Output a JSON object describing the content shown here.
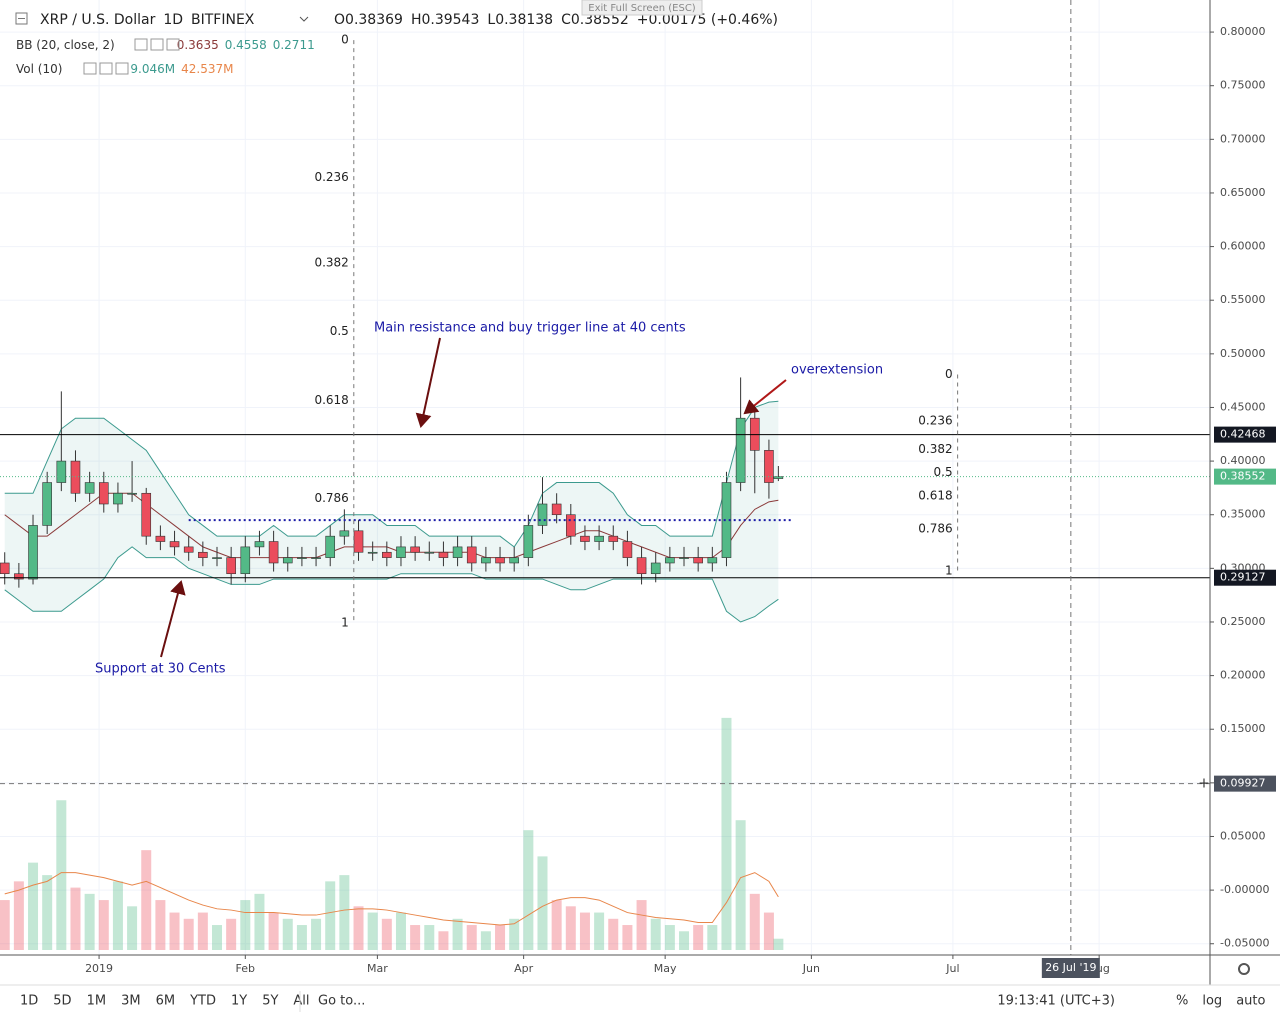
{
  "chart_data": {
    "type": "candlestick",
    "symbol": "XRP / U.S. Dollar",
    "interval": "1D",
    "exchange": "BITFINEX",
    "ohlc_prefixes": [
      "O",
      "H",
      "L",
      "C"
    ],
    "change_text": "+0.00175 (+0.46%)",
    "tooltip": "Exit Full Screen (ESC)",
    "bb_title": "BB (20, close, 2)",
    "vol_title": "Vol (10)",
    "volume_legend": [
      "9.046M",
      "42.537M"
    ],
    "x": [
      -20,
      -17,
      -14,
      -11,
      -8,
      -5,
      -2,
      1,
      4,
      7,
      10,
      13,
      16,
      19,
      22,
      25,
      28,
      31,
      34,
      37,
      40,
      43,
      46,
      49,
      52,
      55,
      58,
      61,
      64,
      67,
      70,
      73,
      76,
      79,
      82,
      85,
      88,
      91,
      94,
      97,
      100,
      103,
      106,
      109,
      112,
      115,
      118,
      121,
      124,
      127,
      130,
      133,
      136,
      139,
      142,
      144
    ],
    "open": [
      0.305,
      0.295,
      0.29,
      0.34,
      0.38,
      0.4,
      0.37,
      0.38,
      0.36,
      0.37,
      0.37,
      0.33,
      0.325,
      0.32,
      0.315,
      0.31,
      0.31,
      0.295,
      0.32,
      0.325,
      0.305,
      0.31,
      0.31,
      0.31,
      0.33,
      0.335,
      0.315,
      0.315,
      0.31,
      0.32,
      0.315,
      0.315,
      0.31,
      0.32,
      0.305,
      0.31,
      0.305,
      0.31,
      0.34,
      0.36,
      0.35,
      0.33,
      0.325,
      0.33,
      0.325,
      0.31,
      0.295,
      0.305,
      0.31,
      0.31,
      0.305,
      0.31,
      0.38,
      0.44,
      0.41,
      0.38369
    ],
    "high": [
      0.315,
      0.305,
      0.35,
      0.39,
      0.465,
      0.41,
      0.39,
      0.39,
      0.38,
      0.4,
      0.375,
      0.34,
      0.335,
      0.33,
      0.325,
      0.32,
      0.32,
      0.33,
      0.335,
      0.335,
      0.32,
      0.32,
      0.32,
      0.34,
      0.355,
      0.345,
      0.325,
      0.325,
      0.33,
      0.33,
      0.325,
      0.325,
      0.33,
      0.33,
      0.32,
      0.32,
      0.32,
      0.35,
      0.385,
      0.37,
      0.36,
      0.34,
      0.34,
      0.34,
      0.335,
      0.32,
      0.315,
      0.32,
      0.32,
      0.32,
      0.32,
      0.39,
      0.478,
      0.45,
      0.42,
      0.39543
    ],
    "low": [
      0.285,
      0.282,
      0.285,
      0.332,
      0.372,
      0.362,
      0.362,
      0.352,
      0.352,
      0.362,
      0.322,
      0.317,
      0.312,
      0.307,
      0.302,
      0.302,
      0.285,
      0.287,
      0.312,
      0.297,
      0.297,
      0.302,
      0.302,
      0.302,
      0.322,
      0.307,
      0.307,
      0.302,
      0.302,
      0.307,
      0.307,
      0.302,
      0.302,
      0.297,
      0.297,
      0.297,
      0.297,
      0.302,
      0.332,
      0.342,
      0.322,
      0.317,
      0.317,
      0.317,
      0.302,
      0.285,
      0.287,
      0.297,
      0.302,
      0.297,
      0.297,
      0.302,
      0.372,
      0.37,
      0.365,
      0.38138
    ],
    "close": [
      0.295,
      0.29,
      0.34,
      0.38,
      0.4,
      0.37,
      0.38,
      0.36,
      0.37,
      0.37,
      0.33,
      0.325,
      0.32,
      0.315,
      0.31,
      0.31,
      0.295,
      0.32,
      0.325,
      0.305,
      0.31,
      0.31,
      0.31,
      0.33,
      0.335,
      0.315,
      0.315,
      0.31,
      0.32,
      0.315,
      0.315,
      0.31,
      0.32,
      0.305,
      0.31,
      0.305,
      0.31,
      0.34,
      0.36,
      0.35,
      0.33,
      0.325,
      0.33,
      0.325,
      0.31,
      0.295,
      0.305,
      0.31,
      0.31,
      0.305,
      0.31,
      0.38,
      0.44,
      0.41,
      0.38,
      0.38552
    ],
    "bb_upper": [
      0.37,
      0.37,
      0.37,
      0.4,
      0.43,
      0.44,
      0.44,
      0.44,
      0.43,
      0.42,
      0.41,
      0.39,
      0.37,
      0.35,
      0.34,
      0.33,
      0.33,
      0.33,
      0.33,
      0.34,
      0.33,
      0.33,
      0.33,
      0.34,
      0.35,
      0.35,
      0.35,
      0.34,
      0.34,
      0.34,
      0.33,
      0.33,
      0.33,
      0.33,
      0.33,
      0.33,
      0.32,
      0.34,
      0.37,
      0.38,
      0.38,
      0.38,
      0.38,
      0.37,
      0.35,
      0.34,
      0.34,
      0.33,
      0.33,
      0.33,
      0.33,
      0.38,
      0.43,
      0.45,
      0.455,
      0.4558
    ],
    "bb_basis": [
      0.35,
      0.34,
      0.33,
      0.33,
      0.34,
      0.35,
      0.36,
      0.37,
      0.37,
      0.37,
      0.36,
      0.35,
      0.34,
      0.33,
      0.32,
      0.315,
      0.31,
      0.31,
      0.31,
      0.31,
      0.31,
      0.31,
      0.31,
      0.315,
      0.32,
      0.32,
      0.32,
      0.32,
      0.315,
      0.315,
      0.315,
      0.315,
      0.315,
      0.315,
      0.31,
      0.31,
      0.31,
      0.315,
      0.32,
      0.325,
      0.33,
      0.335,
      0.335,
      0.33,
      0.325,
      0.32,
      0.315,
      0.31,
      0.31,
      0.31,
      0.31,
      0.32,
      0.34,
      0.355,
      0.362,
      0.3635
    ],
    "bb_lower": [
      0.28,
      0.27,
      0.26,
      0.26,
      0.26,
      0.27,
      0.28,
      0.29,
      0.31,
      0.32,
      0.31,
      0.31,
      0.31,
      0.3,
      0.295,
      0.29,
      0.285,
      0.285,
      0.285,
      0.29,
      0.29,
      0.29,
      0.29,
      0.29,
      0.29,
      0.29,
      0.29,
      0.29,
      0.295,
      0.295,
      0.295,
      0.295,
      0.295,
      0.295,
      0.29,
      0.29,
      0.29,
      0.29,
      0.29,
      0.285,
      0.28,
      0.28,
      0.285,
      0.29,
      0.29,
      0.29,
      0.29,
      0.29,
      0.29,
      0.29,
      0.29,
      0.26,
      0.25,
      0.255,
      0.265,
      0.2711
    ],
    "volume": [
      40,
      55,
      70,
      60,
      120,
      50,
      45,
      40,
      55,
      35,
      80,
      40,
      30,
      25,
      30,
      20,
      25,
      40,
      45,
      30,
      25,
      20,
      25,
      55,
      60,
      35,
      30,
      25,
      30,
      20,
      20,
      15,
      25,
      20,
      15,
      20,
      25,
      96,
      75,
      40,
      35,
      30,
      30,
      25,
      20,
      40,
      25,
      20,
      15,
      20,
      20,
      186,
      104,
      45,
      30,
      9.046
    ],
    "vol_ma": [
      45,
      48,
      52,
      55,
      62,
      62,
      60,
      58,
      55,
      52,
      55,
      50,
      45,
      40,
      36,
      33,
      32,
      30,
      30,
      30,
      29,
      28,
      28,
      30,
      32,
      33,
      33,
      32,
      30,
      28,
      26,
      24,
      23,
      22,
      21,
      20,
      21,
      28,
      35,
      40,
      42,
      42,
      40,
      35,
      30,
      28,
      26,
      25,
      24,
      22,
      22,
      38,
      58,
      62,
      55,
      42.537
    ],
    "volume_lim": [
      0,
      250
    ],
    "xlim": [
      -21,
      235.5
    ],
    "xticks": [
      {
        "value": 0,
        "label": "2019"
      },
      {
        "value": 31,
        "label": "Feb"
      },
      {
        "value": 59,
        "label": "Mar"
      },
      {
        "value": 90,
        "label": "Apr"
      },
      {
        "value": 120,
        "label": "May"
      },
      {
        "value": 151,
        "label": "Jun"
      },
      {
        "value": 181,
        "label": "Jul"
      },
      {
        "value": 212,
        "label": "Aug"
      }
    ],
    "ylim": [
      -0.0605,
      0.8299
    ],
    "yticks": [
      {
        "value": 0.8,
        "label": "0.80000"
      },
      {
        "value": 0.75,
        "label": "0.75000"
      },
      {
        "value": 0.7,
        "label": "0.70000"
      },
      {
        "value": 0.65,
        "label": "0.65000"
      },
      {
        "value": 0.6,
        "label": "0.60000"
      },
      {
        "value": 0.55,
        "label": "0.55000"
      },
      {
        "value": 0.5,
        "label": "0.50000"
      },
      {
        "value": 0.45,
        "label": "0.45000"
      },
      {
        "value": 0.4,
        "label": "0.40000"
      },
      {
        "value": 0.35,
        "label": "0.35000"
      },
      {
        "value": 0.3,
        "label": "0.30000"
      },
      {
        "value": 0.25,
        "label": "0.25000"
      },
      {
        "value": 0.2,
        "label": "0.20000"
      },
      {
        "value": 0.15,
        "label": "0.15000"
      },
      {
        "value": 0.1,
        "label": "0.10000"
      },
      {
        "value": 0.05,
        "label": "0.05000"
      },
      {
        "value": 0,
        "label": "-0.00000"
      },
      {
        "value": -0.05,
        "label": "-0.05000"
      }
    ],
    "grid": true,
    "price_lines": [
      0.42468,
      0.29127
    ],
    "trigger_line": {
      "value": 0.345,
      "x": [
        19,
        147
      ]
    },
    "fibs": [
      {
        "levels": [
          0,
          0.236,
          0.382,
          0.5,
          0.618,
          0.786,
          1
        ],
        "high": 0.7925,
        "low": 0.249,
        "x": 54
      },
      {
        "levels": [
          0,
          0.236,
          0.382,
          0.5,
          0.618,
          0.786,
          1
        ],
        "high": 0.4807,
        "low": 0.2977,
        "x": 182
      }
    ],
    "crosshair": {
      "x": {
        "value": 206,
        "label": "26 Jul '19"
      },
      "y": 0.09927
    },
    "annotations": [
      "Main resistance and buy trigger line at 40 cents",
      "overextension",
      "Support at 30 Cents"
    ],
    "ranges": [
      "1D",
      "5D",
      "1M",
      "3M",
      "6M",
      "YTD",
      "1Y",
      "5Y",
      "All"
    ],
    "goto": "Go to...",
    "clock": "19:13:41 (UTC+3)",
    "scale_buttons": [
      "%",
      "log",
      "auto"
    ]
  }
}
